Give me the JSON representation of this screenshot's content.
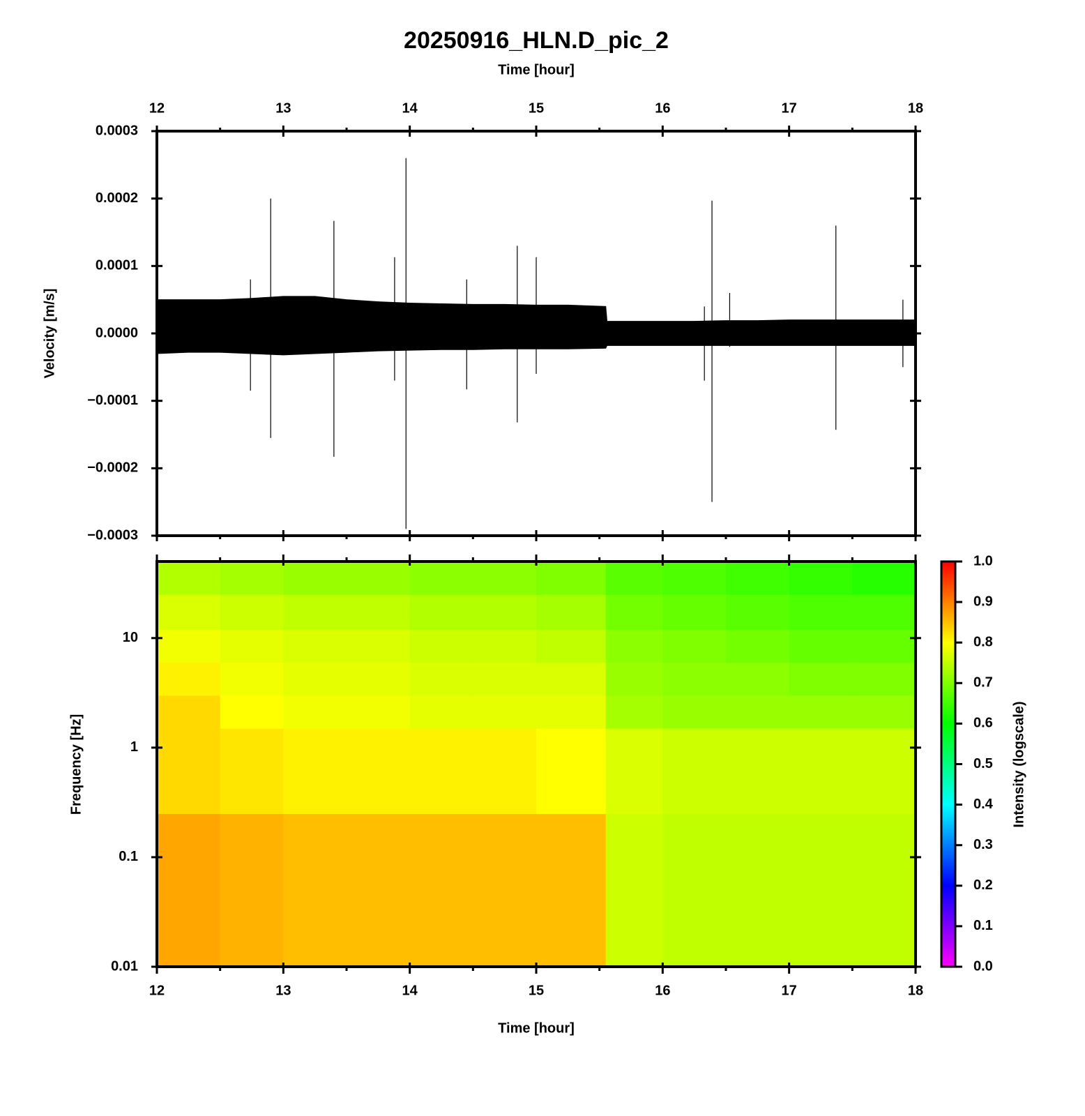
{
  "chart_data": [
    {
      "type": "waveform",
      "title": "20250916_HLN.D_pic_2",
      "xlabel": "Time [hour]",
      "ylabel": "Velocity [m/s]",
      "xlim": [
        12,
        18
      ],
      "xticks": [
        12,
        13,
        14,
        15,
        16,
        17,
        18
      ],
      "xminorticks": [
        12.5,
        13.5,
        14.5,
        15.5,
        16.5,
        17.5
      ],
      "ylim": [
        -0.0003,
        0.0003
      ],
      "yticks": [
        {
          "value": -0.0003,
          "label": "−0.0003"
        },
        {
          "value": -0.0002,
          "label": "−0.0002"
        },
        {
          "value": -0.0001,
          "label": "−0.0001"
        },
        {
          "value": 0,
          "label": "0.0000"
        },
        0.0001,
        0.0002,
        0.0003
      ],
      "color": "#000000",
      "x": [
        12,
        12.25,
        12.5,
        12.75,
        13,
        13.25,
        13.5,
        13.75,
        14,
        14.25,
        14.5,
        14.75,
        15,
        15.25,
        15.55,
        15.56,
        15.75,
        16,
        16.25,
        16.5,
        16.75,
        17,
        17.25,
        17.5,
        17.75,
        18
      ],
      "upper": [
        5e-05,
        5e-05,
        5e-05,
        5.2e-05,
        5.5e-05,
        5.5e-05,
        5e-05,
        4.7e-05,
        4.5e-05,
        4.4e-05,
        4.3e-05,
        4.3e-05,
        4.2e-05,
        4.2e-05,
        4e-05,
        1.8e-05,
        1.8e-05,
        1.8e-05,
        1.8e-05,
        1.9e-05,
        1.9e-05,
        2e-05,
        2e-05,
        2e-05,
        2e-05,
        2e-05
      ],
      "lower": [
        -3e-05,
        -2.8e-05,
        -2.8e-05,
        -3e-05,
        -3.2e-05,
        -3e-05,
        -2.8e-05,
        -2.6e-05,
        -2.5e-05,
        -2.4e-05,
        -2.4e-05,
        -2.3e-05,
        -2.3e-05,
        -2.3e-05,
        -2.2e-05,
        -1.8e-05,
        -1.8e-05,
        -1.8e-05,
        -1.8e-05,
        -1.8e-05,
        -1.8e-05,
        -1.8e-05,
        -1.8e-05,
        -1.8e-05,
        -1.8e-05,
        -1.8e-05
      ],
      "spikes": {
        "x": [
          12.74,
          12.9,
          13.4,
          13.88,
          13.97,
          14.45,
          14.85,
          15.0,
          16.33,
          16.39,
          16.53,
          17.37,
          17.9
        ],
        "high": [
          8e-05,
          0.0002,
          0.000167,
          0.000113,
          0.00026,
          8e-05,
          0.00013,
          0.000113,
          4e-05,
          0.000197,
          6e-05,
          0.00016,
          5e-05
        ],
        "low": [
          -8.5e-05,
          -0.000155,
          -0.000183,
          -7e-05,
          -0.00029,
          -8.3e-05,
          -0.000132,
          -6e-05,
          -7e-05,
          -0.00025,
          -2e-05,
          -0.000143,
          -5e-05
        ]
      }
    },
    {
      "type": "heatmap",
      "xlabel": "Time [hour]",
      "ylabel": "Frequency [Hz]",
      "xlim": [
        12,
        18
      ],
      "xticks": [
        12,
        13,
        14,
        15,
        16,
        17,
        18
      ],
      "xminorticks": [
        12.5,
        13.5,
        14.5,
        15.5,
        16.5,
        17.5
      ],
      "ylim": [
        0.01,
        50
      ],
      "yticks": [
        0.01,
        0.1,
        1,
        10
      ],
      "log_y": true,
      "x": [
        12,
        12.5,
        13,
        13.5,
        14,
        14.5,
        15,
        15.55,
        16,
        16.5,
        17,
        17.5,
        18
      ],
      "y": [
        0.01,
        0.25,
        1.5,
        3,
        6,
        12,
        25,
        50
      ],
      "z": [
        [
          0.87,
          0.86,
          0.85,
          0.85,
          0.85,
          0.85,
          0.85,
          0.76,
          0.75,
          0.75,
          0.75,
          0.75
        ],
        [
          0.83,
          0.82,
          0.81,
          0.81,
          0.81,
          0.81,
          0.8,
          0.77,
          0.76,
          0.76,
          0.76,
          0.76
        ],
        [
          0.83,
          0.8,
          0.79,
          0.79,
          0.78,
          0.78,
          0.78,
          0.73,
          0.72,
          0.72,
          0.72,
          0.72
        ],
        [
          0.81,
          0.79,
          0.78,
          0.78,
          0.77,
          0.77,
          0.77,
          0.72,
          0.71,
          0.71,
          0.7,
          0.7
        ],
        [
          0.79,
          0.78,
          0.77,
          0.77,
          0.76,
          0.76,
          0.75,
          0.71,
          0.7,
          0.69,
          0.68,
          0.68
        ],
        [
          0.77,
          0.76,
          0.75,
          0.75,
          0.74,
          0.74,
          0.73,
          0.69,
          0.68,
          0.67,
          0.66,
          0.66
        ],
        [
          0.74,
          0.73,
          0.72,
          0.72,
          0.71,
          0.71,
          0.7,
          0.67,
          0.66,
          0.65,
          0.64,
          0.63
        ]
      ],
      "colorbar": {
        "label": "Intensity (logscale)",
        "lim": [
          0,
          1
        ],
        "ticks": [
          {
            "value": 0,
            "label": "0.0"
          },
          0.1,
          0.2,
          0.3,
          0.4,
          0.5,
          0.6,
          0.7,
          0.8,
          0.9,
          {
            "value": 1,
            "label": "1.0"
          }
        ],
        "colormap": [
          [
            0,
            "#ff00ff"
          ],
          [
            0.2,
            "#0000ff"
          ],
          [
            0.4,
            "#00ffff"
          ],
          [
            0.6,
            "#00ff00"
          ],
          [
            0.8,
            "#ffff00"
          ],
          [
            1,
            "#ff0000"
          ]
        ]
      }
    }
  ]
}
